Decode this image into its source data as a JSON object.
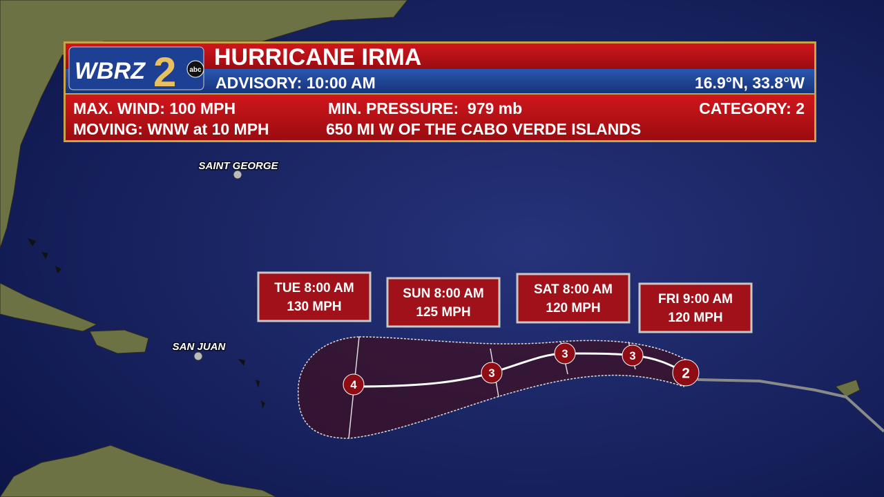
{
  "header": {
    "logo": "WBRZ",
    "logo_number": "2",
    "network": "abc",
    "title": "HURRICANE IRMA",
    "advisory": "ADVISORY: 10:00 AM",
    "position": "16.9°N, 33.8°W"
  },
  "details": {
    "max_wind": "MAX. WIND: 100 MPH",
    "min_pressure": "MIN. PRESSURE:  979 mb",
    "category": "CATEGORY: 2",
    "moving": "MOVING: WNW at 10 MPH",
    "location": "650 MI W OF THE CABO VERDE ISLANDS"
  },
  "cities": [
    {
      "label": "SAINT GEORGE"
    },
    {
      "label": "SAN JUAN"
    }
  ],
  "forecast_points": [
    {
      "time": "TUE 8:00 AM",
      "wind": "130 MPH"
    },
    {
      "time": "SUN 8:00 AM",
      "wind": "125 MPH"
    },
    {
      "time": "SAT 8:00 AM",
      "wind": "120 MPH"
    },
    {
      "time": "FRI 9:00 AM",
      "wind": "120 MPH"
    }
  ],
  "track_markers": [
    "4",
    "3",
    "3",
    "3",
    "2"
  ]
}
